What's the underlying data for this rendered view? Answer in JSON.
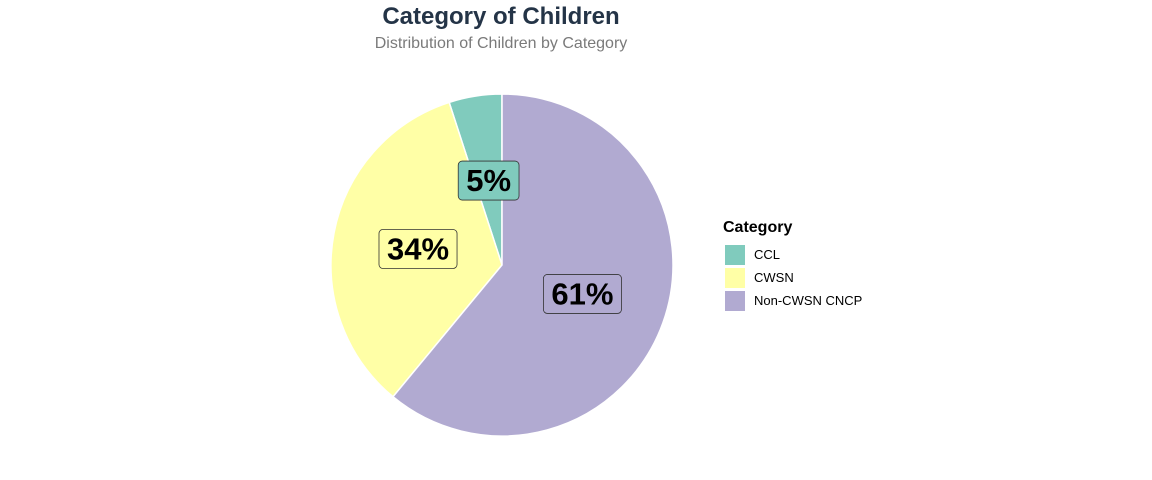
{
  "chart_data": {
    "type": "pie",
    "title": "Category of Children",
    "subtitle": "Distribution of Children by Category",
    "slices": [
      {
        "label": "CCL",
        "value": 5,
        "display": "5%",
        "color": "#80CBBD"
      },
      {
        "label": "CWSN",
        "value": 34,
        "display": "34%",
        "color": "#FFFFA6"
      },
      {
        "label": "Non-CWSN CNCP",
        "value": 61,
        "display": "61%",
        "color": "#B1AAD1"
      }
    ],
    "legend": {
      "title": "Category",
      "position": "right"
    },
    "start": "top",
    "direction": "counterclockwise"
  }
}
